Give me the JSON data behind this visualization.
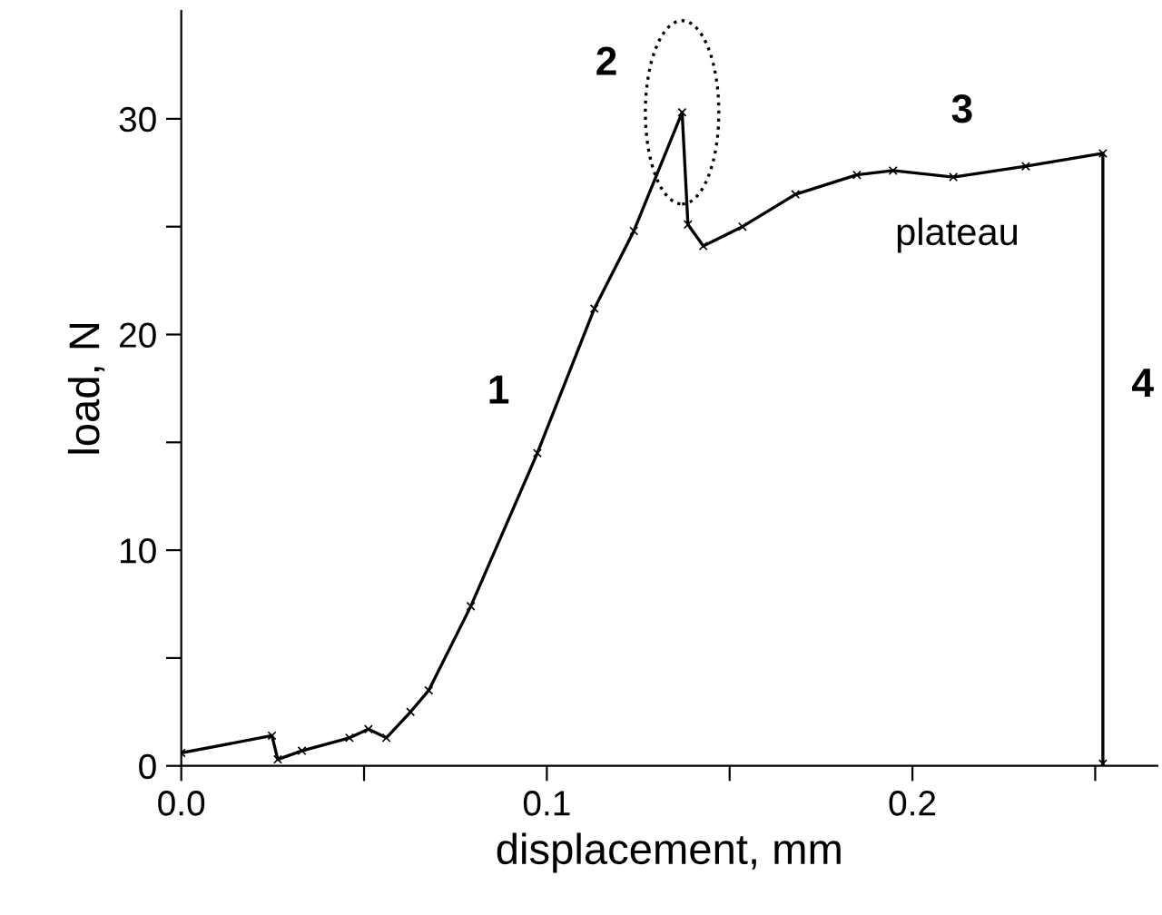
{
  "chart_data": {
    "type": "line",
    "xlabel": "displacement, mm",
    "ylabel": "load, N",
    "xlim": [
      0,
      0.267
    ],
    "ylim": [
      0,
      35
    ],
    "xticks": [
      {
        "value": 0,
        "label": "0.0"
      },
      {
        "value": 0.05,
        "label": null
      },
      0.1,
      {
        "value": 0.15,
        "label": null
      },
      0.2,
      {
        "value": 0.25,
        "label": null
      }
    ],
    "yticks": [
      0,
      {
        "value": 5,
        "label": null
      },
      10,
      {
        "value": 15,
        "label": null
      },
      20,
      {
        "value": 25,
        "label": null
      },
      30
    ],
    "grid": false,
    "legend": false,
    "marker": "cross",
    "line_style": "solid",
    "series": [
      {
        "color": "#000000",
        "x": [
          0,
          0.0248,
          0.0264,
          0.033,
          0.046,
          0.0512,
          0.0561,
          0.0627,
          0.0677,
          0.0792,
          0.0974,
          0.113,
          0.1238,
          0.137,
          0.1386,
          0.1428,
          0.1535,
          0.168,
          0.1848,
          0.1947,
          0.2112,
          0.231,
          0.2521,
          0.2521
        ],
        "values": [
          0.6,
          1.4,
          0.3,
          0.7,
          1.3,
          1.7,
          1.3,
          2.5,
          3.5,
          7.4,
          14.5,
          21.2,
          24.8,
          30.3,
          25.1,
          24.1,
          25.0,
          26.5,
          27.4,
          27.6,
          27.3,
          27.8,
          28.4,
          0.1
        ]
      }
    ],
    "annotations": [
      "1",
      {
        "text": "2",
        "x": 0.137,
        "y": 30.3
      },
      "3",
      "plateau",
      "4"
    ]
  }
}
